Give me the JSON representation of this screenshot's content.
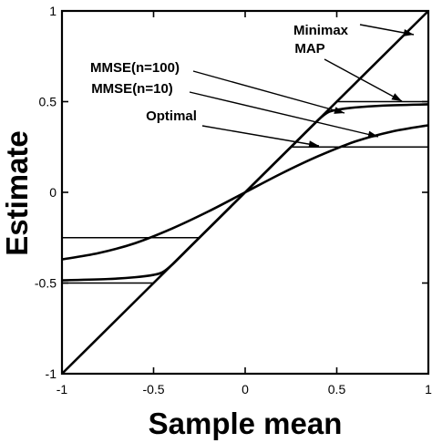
{
  "chart_data": {
    "type": "line",
    "title": "",
    "xlabel": "Sample mean",
    "ylabel": "Estimate",
    "xlim": [
      -1,
      1
    ],
    "ylim": [
      -1,
      1
    ],
    "x_ticks": [
      -1,
      -0.5,
      0,
      0.5,
      1
    ],
    "y_ticks": [
      -1,
      -0.5,
      0,
      0.5,
      1
    ],
    "x_tick_labels": [
      "-1",
      "-0.5",
      "0",
      "0.5",
      "1"
    ],
    "y_tick_labels": [
      "-1",
      "-0.5",
      "0",
      "0.5",
      "1"
    ],
    "grid": false,
    "series": [
      {
        "name": "Minimax",
        "x": [
          -1,
          1
        ],
        "y": [
          -1,
          1
        ]
      },
      {
        "name": "MAP",
        "x": [
          -1,
          -0.5,
          0.5,
          1
        ],
        "y": [
          -0.5,
          -0.5,
          0.5,
          0.5
        ]
      },
      {
        "name": "MMSE(n=100)",
        "x": [
          -1,
          -0.75,
          -0.6,
          -0.5,
          -0.45,
          -0.4,
          -0.3,
          -0.2,
          -0.1,
          0,
          0.1,
          0.2,
          0.3,
          0.4,
          0.45,
          0.5,
          0.6,
          0.75,
          1
        ],
        "y": [
          -0.485,
          -0.478,
          -0.468,
          -0.455,
          -0.44,
          -0.4,
          -0.3,
          -0.2,
          -0.1,
          0,
          0.1,
          0.2,
          0.3,
          0.4,
          0.44,
          0.455,
          0.468,
          0.478,
          0.485
        ]
      },
      {
        "name": "MMSE(n=10)",
        "x": [
          -1,
          -0.8,
          -0.6,
          -0.4,
          -0.2,
          0,
          0.2,
          0.4,
          0.6,
          0.8,
          1
        ],
        "y": [
          -0.37,
          -0.335,
          -0.28,
          -0.2,
          -0.105,
          0,
          0.105,
          0.2,
          0.28,
          0.335,
          0.37
        ]
      },
      {
        "name": "Optimal",
        "x": [
          -1,
          -0.25,
          0.25,
          1
        ],
        "y": [
          -0.25,
          -0.25,
          0.25,
          0.25
        ]
      }
    ],
    "annotations": [
      {
        "text": "Minimax",
        "target_series": "Minimax"
      },
      {
        "text": "MAP",
        "target_series": "MAP"
      },
      {
        "text": "MMSE(n=100)",
        "target_series": "MMSE(n=100)"
      },
      {
        "text": "MMSE(n=10)",
        "target_series": "MMSE(n=10)"
      },
      {
        "text": "Optimal",
        "target_series": "Optimal"
      }
    ],
    "legend": "none"
  }
}
